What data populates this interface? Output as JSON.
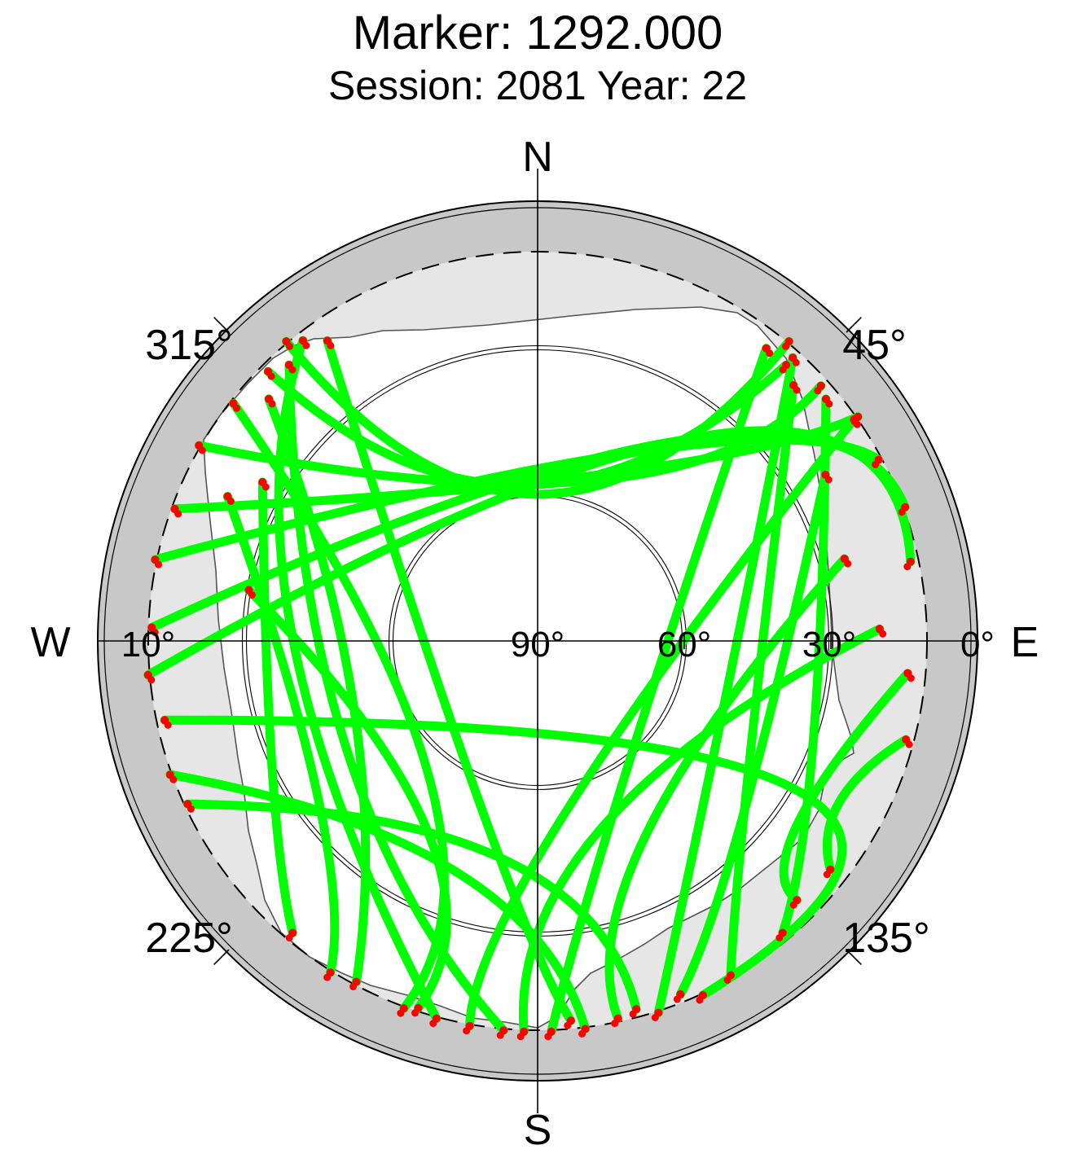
{
  "chart_data": {
    "type": "scatter",
    "projection": "polar-skyplot",
    "title": "Marker: 1292.000",
    "subtitle": "Session: 2081 Year: 22",
    "compass": {
      "north": "N",
      "south": "S",
      "east": "E",
      "west": "W"
    },
    "azimuth_ticks": [
      {
        "az": 45,
        "label": "45°"
      },
      {
        "az": 135,
        "label": "135°"
      },
      {
        "az": 225,
        "label": "225°"
      },
      {
        "az": 315,
        "label": "315°"
      }
    ],
    "elevation_ticks": [
      {
        "el": 0,
        "label": "0°"
      },
      {
        "el": 10,
        "label": "10°"
      },
      {
        "el": 30,
        "label": "30°"
      },
      {
        "el": 60,
        "label": "60°"
      },
      {
        "el": 90,
        "label": "90°"
      }
    ],
    "cutoff_elevation": 10,
    "elevation_circles": [
      30,
      60
    ],
    "tracks": [
      {
        "from": [
          320,
          10
        ],
        "peak": [
          0,
          60
        ],
        "to": [
          40,
          10
        ]
      },
      {
        "from": [
          315,
          12
        ],
        "peak": [
          355,
          58
        ],
        "to": [
          42,
          14
        ]
      },
      {
        "from": [
          300,
          10
        ],
        "peak": [
          20,
          55
        ],
        "to": [
          48,
          12
        ]
      },
      {
        "from": [
          290,
          11
        ],
        "peak": [
          25,
          52
        ],
        "to": [
          55,
          10
        ]
      },
      {
        "from": [
          282,
          10
        ],
        "peak": [
          30,
          45
        ],
        "to": [
          62,
          11
        ]
      },
      {
        "from": [
          272,
          11
        ],
        "peak": [
          35,
          40
        ],
        "to": [
          70,
          10
        ]
      },
      {
        "from": [
          265,
          10
        ],
        "peak": [
          40,
          35
        ],
        "to": [
          78,
          12
        ]
      },
      {
        "from": [
          258,
          12
        ],
        "peak": [
          120,
          30
        ],
        "to": [
          155,
          10
        ]
      },
      {
        "from": [
          250,
          10
        ],
        "peak": [
          200,
          40
        ],
        "to": [
          173,
          10
        ]
      },
      {
        "from": [
          245,
          11
        ],
        "peak": [
          190,
          45
        ],
        "to": [
          165,
          12
        ]
      },
      {
        "from": [
          322,
          12
        ],
        "peak": [
          270,
          40
        ],
        "to": [
          195,
          10
        ]
      },
      {
        "from": [
          318,
          14
        ],
        "peak": [
          240,
          45
        ],
        "to": [
          185,
          10
        ]
      },
      {
        "from": [
          325,
          15
        ],
        "peak": [
          200,
          55
        ],
        "to": [
          175,
          12
        ]
      },
      {
        "from": [
          312,
          16
        ],
        "peak": [
          250,
          50
        ],
        "to": [
          208,
          11
        ]
      },
      {
        "from": [
          308,
          11
        ],
        "peak": [
          220,
          55
        ],
        "to": [
          200,
          10
        ]
      },
      {
        "from": [
          42,
          12
        ],
        "peak": [
          100,
          50
        ],
        "to": [
          162,
          10
        ]
      },
      {
        "from": [
          38,
          14
        ],
        "peak": [
          140,
          60
        ],
        "to": [
          178,
          10
        ]
      },
      {
        "from": [
          45,
          16
        ],
        "peak": [
          120,
          40
        ],
        "to": [
          150,
          11
        ]
      },
      {
        "from": [
          50,
          13
        ],
        "peak": [
          110,
          30
        ],
        "to": [
          140,
          12
        ]
      },
      {
        "from": [
          55,
          11
        ],
        "peak": [
          170,
          55
        ],
        "to": [
          190,
          10
        ]
      },
      {
        "from": [
          300,
          25
        ],
        "peak": [
          245,
          30
        ],
        "to": [
          220,
          12
        ]
      },
      {
        "from": [
          295,
          20
        ],
        "peak": [
          235,
          35
        ],
        "to": [
          212,
          10
        ]
      },
      {
        "from": [
          280,
          30
        ],
        "peak": [
          210,
          45
        ],
        "to": [
          198,
          11
        ]
      },
      {
        "from": [
          60,
          22
        ],
        "peak": [
          130,
          35
        ],
        "to": [
          158,
          12
        ]
      },
      {
        "from": [
          75,
          25
        ],
        "peak": [
          150,
          45
        ],
        "to": [
          168,
          11
        ]
      },
      {
        "from": [
          88,
          20
        ],
        "peak": [
          160,
          50
        ],
        "to": [
          182,
          10
        ]
      },
      {
        "from": [
          95,
          14
        ],
        "peak": [
          125,
          25
        ],
        "to": [
          135,
          15
        ]
      },
      {
        "from": [
          105,
          12
        ],
        "peak": [
          118,
          20
        ],
        "to": [
          128,
          14
        ]
      }
    ],
    "colors": {
      "track": "#00ff00",
      "low_elevation": "#ff0000",
      "outer_ring": "#c8c8c8",
      "mask": "#e6e6e6",
      "axes": "#000000"
    }
  }
}
